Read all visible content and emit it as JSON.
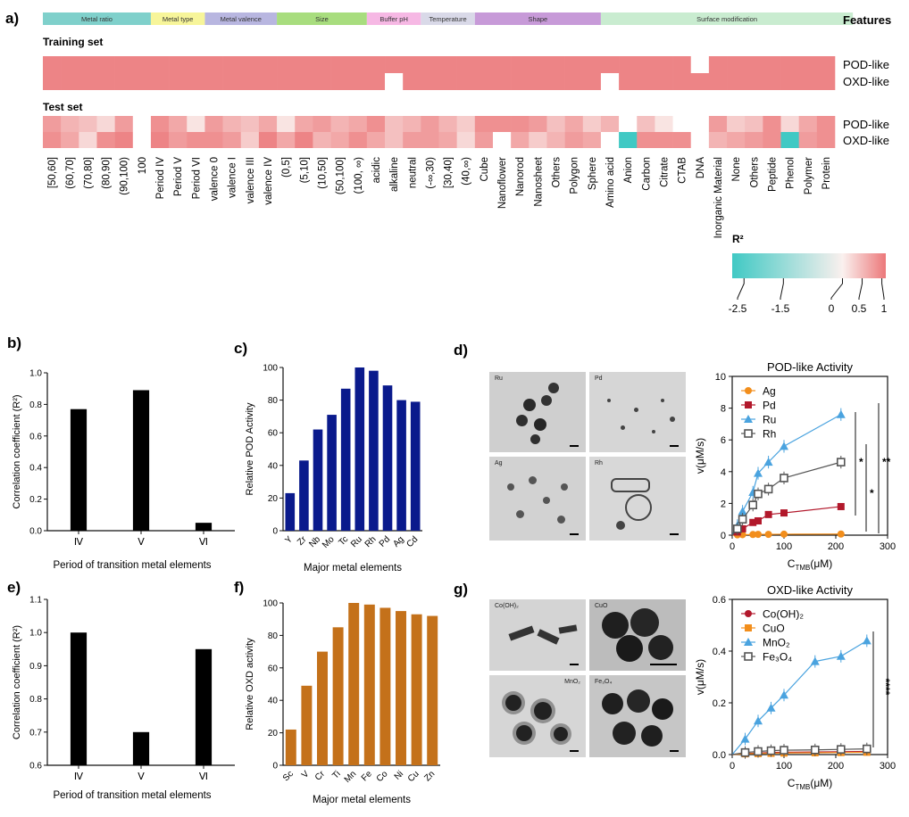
{
  "panel_a": {
    "panel_label": "a)",
    "feature_groups": [
      {
        "name": "Metal ratio",
        "color": "#7fd0cb",
        "span": 6
      },
      {
        "name": "Metal type",
        "color": "#f7f59a",
        "span": 3
      },
      {
        "name": "Metal valence",
        "color": "#b8b6e0",
        "span": 4
      },
      {
        "name": "Size",
        "color": "#a8dd7e",
        "span": 5
      },
      {
        "name": "Buffer pH",
        "color": "#f6b8e4",
        "span": 3
      },
      {
        "name": "Temperature",
        "color": "#d9d9e8",
        "span": 3
      },
      {
        "name": "Shape",
        "color": "#c79ad8",
        "span": 7
      },
      {
        "name": "Surface modification",
        "color": "#c9ecd0",
        "span": 14
      }
    ],
    "features_label": "Features",
    "training_label": "Training set",
    "test_label": "Test set",
    "row_labels": [
      "POD-like",
      "OXD-like"
    ],
    "columns": [
      "[50,60]",
      "(60,70]",
      "(70,80]",
      "(80,90]",
      "(90,100)",
      "100",
      "Period IV",
      "Period V",
      "Period VI",
      "valence 0",
      "valence I",
      "valence III",
      "valence IV",
      "(0,5]",
      "(5,10]",
      "(10,50]",
      "(50,100]",
      "(100, ∞)",
      "acidic",
      "alkaline",
      "neutral",
      "(-∞,30)",
      "[30,40]",
      "(40,∞)",
      "Cube",
      "Nanoflower",
      "Nanorod",
      "Nanosheet",
      "Others",
      "Polygon",
      "Sphere",
      "Amino acid",
      "Anion",
      "Carbon",
      "Citrate",
      "CTAB",
      "DNA",
      "Inorganic Material",
      "None",
      "Others",
      "Peptide",
      "Phenol",
      "Polymer",
      "Protein"
    ],
    "training_pod": [
      0.9,
      0.9,
      0.9,
      0.9,
      0.9,
      0.9,
      0.9,
      0.9,
      0.9,
      0.9,
      0.9,
      0.9,
      0.9,
      0.9,
      0.9,
      0.9,
      0.9,
      0.9,
      0.9,
      0.9,
      0.9,
      0.9,
      0.9,
      0.9,
      0.9,
      0.9,
      0.9,
      0.9,
      0.9,
      0.9,
      0.9,
      0.9,
      0.9,
      0.9,
      0.9,
      0.9,
      null,
      0.9,
      0.9,
      0.9,
      0.9,
      0.9,
      0.9,
      0.9
    ],
    "training_oxd": [
      0.9,
      0.9,
      0.9,
      0.9,
      0.9,
      0.9,
      0.9,
      0.9,
      0.9,
      0.9,
      0.9,
      0.9,
      0.9,
      0.9,
      0.9,
      0.9,
      0.9,
      0.9,
      0.9,
      null,
      0.9,
      0.9,
      0.9,
      0.9,
      0.9,
      0.9,
      0.9,
      0.9,
      0.9,
      0.9,
      0.9,
      null,
      0.9,
      0.9,
      0.9,
      0.9,
      0.9,
      0.9,
      0.9,
      0.9,
      0.9,
      0.9,
      0.9,
      0.9
    ],
    "test_pod": [
      0.7,
      0.5,
      0.4,
      0.2,
      0.7,
      null,
      0.8,
      0.6,
      0.1,
      0.7,
      0.5,
      0.4,
      0.6,
      0.1,
      0.6,
      0.7,
      0.5,
      0.6,
      0.8,
      0.4,
      0.5,
      0.7,
      0.5,
      0.3,
      0.8,
      0.8,
      0.8,
      0.7,
      0.4,
      0.6,
      0.3,
      0.5,
      null,
      0.4,
      0.1,
      null,
      null,
      0.7,
      0.3,
      0.4,
      0.8,
      0.2,
      0.6,
      0.8
    ],
    "test_oxd": [
      0.8,
      0.6,
      0.2,
      0.8,
      0.9,
      null,
      0.9,
      0.7,
      0.8,
      0.8,
      0.7,
      0.3,
      0.9,
      0.6,
      0.9,
      0.5,
      0.6,
      0.8,
      0.6,
      0.4,
      0.7,
      0.7,
      0.6,
      0.2,
      0.7,
      null,
      0.6,
      0.3,
      0.5,
      0.7,
      0.6,
      null,
      -2.5,
      0.8,
      0.8,
      0.8,
      null,
      0.5,
      0.6,
      0.7,
      0.8,
      -2.5,
      0.7,
      0.8
    ],
    "colorbar": {
      "title": "R²",
      "ticks": [
        "-2.5",
        "-1.5",
        "0",
        "0.5",
        "1"
      ],
      "min": -2.8,
      "max": 1.1,
      "tick_values": [
        -2.5,
        -1.5,
        0,
        0.5,
        1
      ]
    }
  },
  "chart_data": [
    {
      "id": "b",
      "type": "bar",
      "panel_label": "b)",
      "categories": [
        "Ⅳ",
        "Ⅴ",
        "Ⅵ"
      ],
      "values": [
        0.77,
        0.89,
        0.05
      ],
      "ylabel": "Correlation coefficient (R²)",
      "xlabel": "Period of transition metal elements",
      "ylim": [
        0.0,
        1.0
      ],
      "yticks": [
        "0.0",
        "0.2",
        "0.4",
        "0.6",
        "0.8",
        "1.0"
      ],
      "color": "#000000"
    },
    {
      "id": "c",
      "type": "bar",
      "panel_label": "c)",
      "categories": [
        "Y",
        "Zr",
        "Nb",
        "Mo",
        "Tc",
        "Ru",
        "Rh",
        "Pd",
        "Ag",
        "Cd"
      ],
      "values": [
        23,
        43,
        62,
        71,
        87,
        100,
        98,
        89,
        80,
        79
      ],
      "ylabel": "Relative POD Activity",
      "xlabel": "Major metal elements",
      "ylim": [
        0,
        100
      ],
      "yticks": [
        "0",
        "20",
        "40",
        "60",
        "80",
        "100"
      ],
      "color": "#0a1a8c"
    },
    {
      "id": "d",
      "type": "line",
      "panel_label": "d)",
      "title": "POD-like Activity",
      "xlabel": "C",
      "xlabel_sub": "TMB",
      "xlabel_unit": "(μM)",
      "ylabel": "v(μM/s)",
      "xlim": [
        0,
        300
      ],
      "ylim": [
        0,
        10
      ],
      "xticks": [
        "0",
        "100",
        "200",
        "300"
      ],
      "yticks": [
        "0",
        "2",
        "4",
        "6",
        "8",
        "10"
      ],
      "series": [
        {
          "name": "Ag",
          "color": "#f28e1c",
          "marker": "circle",
          "x": [
            10,
            20,
            40,
            50,
            70,
            100,
            210
          ],
          "y": [
            0.02,
            0.03,
            0.04,
            0.05,
            0.05,
            0.06,
            0.07
          ]
        },
        {
          "name": "Pd",
          "color": "#b2182b",
          "marker": "square",
          "x": [
            10,
            20,
            40,
            50,
            70,
            100,
            210
          ],
          "y": [
            0.2,
            0.4,
            0.8,
            0.9,
            1.3,
            1.4,
            1.8
          ]
        },
        {
          "name": "Ru",
          "color": "#4aa3df",
          "marker": "triangle",
          "x": [
            10,
            20,
            40,
            50,
            70,
            100,
            210
          ],
          "y": [
            0.6,
            1.5,
            2.7,
            3.9,
            4.6,
            5.6,
            7.6
          ]
        },
        {
          "name": "Rh",
          "color": "#555555",
          "marker": "open-square",
          "x": [
            10,
            20,
            40,
            50,
            70,
            100,
            210
          ],
          "y": [
            0.4,
            1.0,
            1.9,
            2.6,
            2.9,
            3.6,
            4.6
          ]
        }
      ],
      "significance": [
        "*",
        "*",
        "**"
      ]
    },
    {
      "id": "e",
      "type": "bar",
      "panel_label": "e)",
      "categories": [
        "Ⅳ",
        "Ⅴ",
        "Ⅵ"
      ],
      "values": [
        1.0,
        0.7,
        0.95
      ],
      "ylabel": "Correlation coefficient (R²)",
      "xlabel": "Period of transition metal elements",
      "ylim": [
        0.6,
        1.1
      ],
      "yticks": [
        "0.6",
        "0.7",
        "0.8",
        "0.9",
        "1.0",
        "1.1"
      ],
      "color": "#000000"
    },
    {
      "id": "f",
      "type": "bar",
      "panel_label": "f)",
      "categories": [
        "Sc",
        "V",
        "Cr",
        "Ti",
        "Mn",
        "Fe",
        "Co",
        "Ni",
        "Cu",
        "Zn"
      ],
      "values": [
        22,
        49,
        70,
        85,
        100,
        99,
        97,
        95,
        93,
        92
      ],
      "ylabel": "Relative OXD activity",
      "xlabel": "Major metal elements",
      "ylim": [
        0,
        100
      ],
      "yticks": [
        "0",
        "20",
        "40",
        "60",
        "80",
        "100"
      ],
      "color": "#c4711a"
    },
    {
      "id": "g",
      "type": "line",
      "panel_label": "g)",
      "title": "OXD-like Activity",
      "xlabel": "C",
      "xlabel_sub": "TMB",
      "xlabel_unit": "(μM)",
      "ylabel": "v(μM/s)",
      "xlim": [
        0,
        300
      ],
      "ylim": [
        0,
        0.6
      ],
      "xticks": [
        "0",
        "100",
        "200",
        "300"
      ],
      "yticks": [
        "0.0",
        "0.2",
        "0.4",
        "0.6"
      ],
      "series": [
        {
          "name": "Co(OH)₂",
          "color": "#b2182b",
          "marker": "circle",
          "x": [
            25,
            50,
            75,
            100,
            160,
            210,
            260
          ],
          "y": [
            0.004,
            0.006,
            0.008,
            0.009,
            0.01,
            0.011,
            0.012
          ]
        },
        {
          "name": "CuO",
          "color": "#f28e1c",
          "marker": "square",
          "x": [
            25,
            50,
            75,
            100,
            160,
            210,
            260
          ],
          "y": [
            0.003,
            0.004,
            0.005,
            0.006,
            0.007,
            0.008,
            0.009
          ]
        },
        {
          "name": "MnO₂",
          "color": "#4aa3df",
          "marker": "triangle",
          "x": [
            25,
            50,
            75,
            100,
            160,
            210,
            260
          ],
          "y": [
            0.06,
            0.13,
            0.18,
            0.23,
            0.36,
            0.38,
            0.44
          ]
        },
        {
          "name": "Fe₃O₄",
          "color": "#555555",
          "marker": "open-square",
          "x": [
            25,
            50,
            75,
            100,
            160,
            210,
            260
          ],
          "y": [
            0.008,
            0.012,
            0.015,
            0.017,
            0.018,
            0.02,
            0.022
          ]
        }
      ],
      "significance": [
        "****"
      ]
    }
  ],
  "tem_d": {
    "labels": [
      "Ru",
      "Pd",
      "Ag",
      "Rh"
    ]
  },
  "tem_g": {
    "labels": [
      "Co(OH)₂",
      "CuO",
      "MnO₂",
      "Fe₃O₄"
    ]
  }
}
